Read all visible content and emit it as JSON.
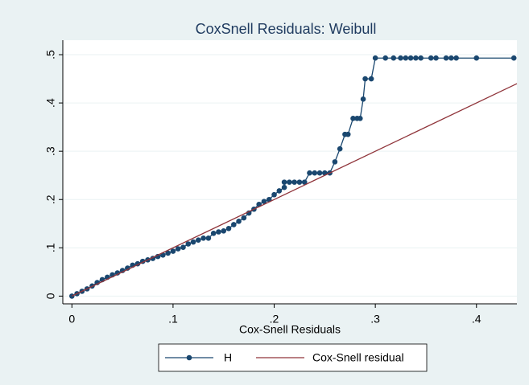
{
  "chart_data": {
    "type": "line",
    "title": "CoxSnell Residuals: Weibull",
    "x_label": "Cox-Snell Residuals",
    "xlim": [
      -0.009,
      0.44
    ],
    "ylim": [
      -0.016,
      0.53
    ],
    "xticks": [
      0,
      {
        "value": 0.1,
        "label": ".1"
      },
      {
        "value": 0.2,
        "label": ".2"
      },
      {
        "value": 0.3,
        "label": ".3"
      },
      {
        "value": 0.4,
        "label": ".4"
      }
    ],
    "yticks": [
      0,
      {
        "value": 0.1,
        "label": ".1"
      },
      {
        "value": 0.2,
        "label": ".2"
      },
      {
        "value": 0.3,
        "label": ".3"
      },
      {
        "value": 0.4,
        "label": ".4"
      },
      {
        "value": 0.5,
        "label": ".5"
      }
    ],
    "grid": true,
    "legend": "bottom",
    "series": [
      {
        "name": "H",
        "color": "#1a476f",
        "markers": true,
        "x": [
          0,
          0.005,
          0.01,
          0.015,
          0.02,
          0.025,
          0.03,
          0.035,
          0.04,
          0.045,
          0.05,
          0.055,
          0.06,
          0.065,
          0.07,
          0.075,
          0.08,
          0.085,
          0.09,
          0.095,
          0.1,
          0.105,
          0.11,
          0.115,
          0.12,
          0.125,
          0.13,
          0.135,
          0.14,
          0.145,
          0.15,
          0.155,
          0.16,
          0.165,
          0.17,
          0.175,
          0.18,
          0.185,
          0.19,
          0.195,
          0.2,
          0.205,
          0.21,
          0.21,
          0.215,
          0.22,
          0.225,
          0.23,
          0.235,
          0.24,
          0.245,
          0.25,
          0.255,
          0.26,
          0.265,
          0.27,
          0.273,
          0.278,
          0.282,
          0.285,
          0.288,
          0.29,
          0.296,
          0.3,
          0.31,
          0.318,
          0.325,
          0.33,
          0.335,
          0.34,
          0.345,
          0.355,
          0.36,
          0.37,
          0.375,
          0.38,
          0.4,
          0.437
        ],
        "values": [
          0,
          0.005,
          0.01,
          0.015,
          0.021,
          0.028,
          0.034,
          0.039,
          0.044,
          0.048,
          0.053,
          0.058,
          0.064,
          0.067,
          0.072,
          0.075,
          0.078,
          0.082,
          0.085,
          0.089,
          0.093,
          0.098,
          0.101,
          0.108,
          0.112,
          0.116,
          0.12,
          0.12,
          0.13,
          0.133,
          0.135,
          0.14,
          0.148,
          0.155,
          0.162,
          0.172,
          0.18,
          0.19,
          0.196,
          0.2,
          0.21,
          0.218,
          0.225,
          0.236,
          0.236,
          0.236,
          0.236,
          0.236,
          0.255,
          0.255,
          0.255,
          0.255,
          0.255,
          0.278,
          0.305,
          0.335,
          0.335,
          0.368,
          0.368,
          0.368,
          0.408,
          0.45,
          0.45,
          0.493,
          0.493,
          0.493,
          0.493,
          0.493,
          0.493,
          0.493,
          0.493,
          0.493,
          0.493,
          0.493,
          0.493,
          0.493,
          0.493,
          0.493
        ]
      },
      {
        "name": "Cox-Snell residual",
        "color": "#90353b",
        "markers": false,
        "x": [
          0,
          0.44
        ],
        "values": [
          0,
          0.44
        ]
      }
    ]
  }
}
